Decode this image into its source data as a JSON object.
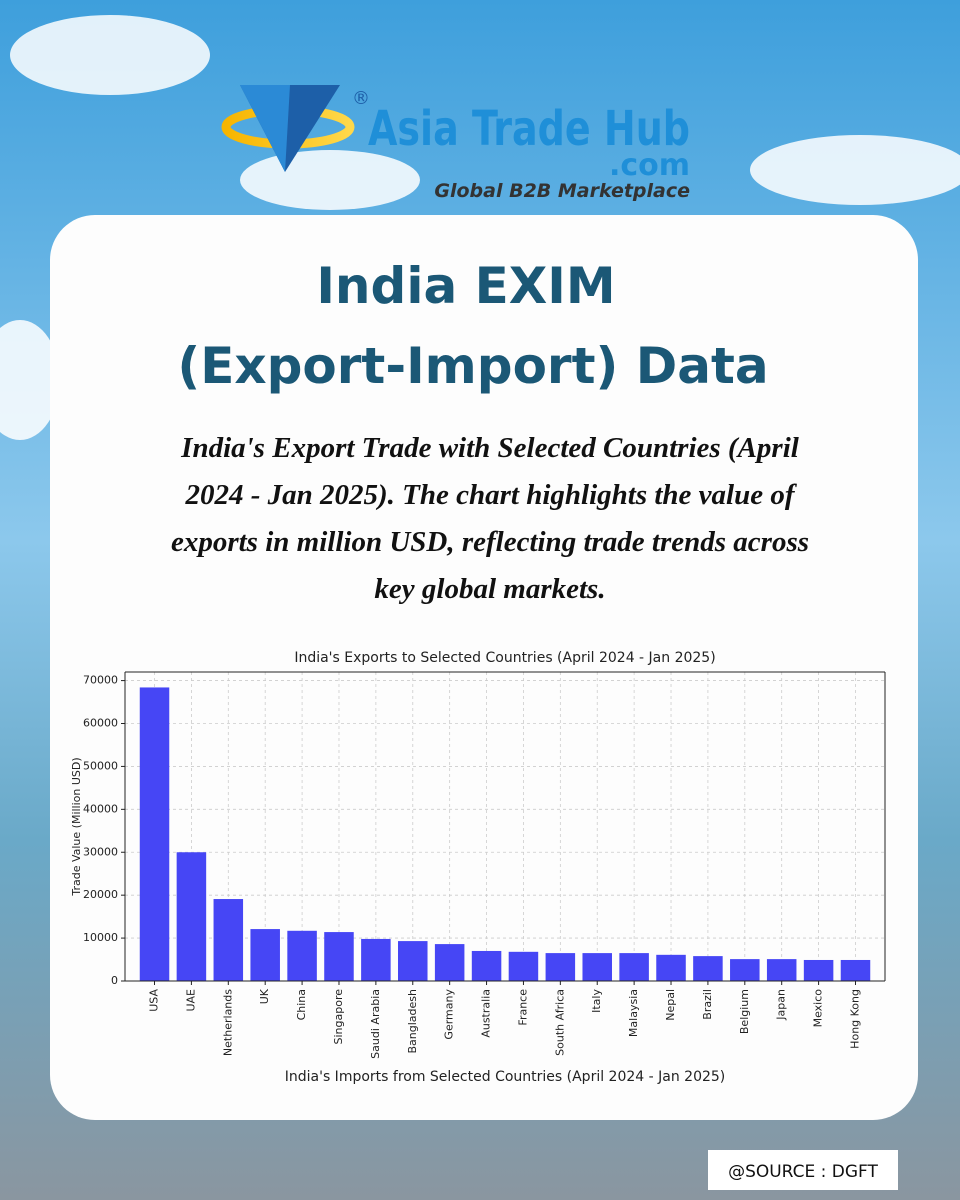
{
  "logo": {
    "name": "Asia Trade Hub",
    "registered": "®",
    "domain": ".com",
    "tagline": "Global B2B Marketplace"
  },
  "heading": [
    "India EXIM",
    "(Export-Import) Data"
  ],
  "description": [
    "India's Export Trade with Selected Countries (April",
    "2024 - Jan 2025). The chart highlights the value of",
    "exports in million USD, reflecting trade trends across",
    "key global markets."
  ],
  "chart_data": {
    "type": "bar",
    "title": "India's Exports to Selected Countries (April 2024 - Jan 2025)",
    "x_label": "India's Imports from Selected Countries (April 2024 - Jan 2025)",
    "y_label": "Trade Value (Million USD)",
    "categories": [
      "USA",
      "UAE",
      "Netherlands",
      "UK",
      "China",
      "Singapore",
      "Saudi Arabia",
      "Bangladesh",
      "Germany",
      "Australia",
      "France",
      "South Africa",
      "Italy",
      "Malaysia",
      "Nepal",
      "Brazil",
      "Belgium",
      "Japan",
      "Mexico",
      "Hong Kong"
    ],
    "values": [
      68400,
      30000,
      19100,
      12100,
      11700,
      11400,
      9800,
      9300,
      8600,
      7000,
      6800,
      6500,
      6500,
      6500,
      6100,
      5800,
      5100,
      5100,
      4900,
      4900
    ],
    "color": "#4646f5",
    "ylim": [
      0,
      72000
    ],
    "yticks": [
      0,
      10000,
      20000,
      30000,
      40000,
      50000,
      60000,
      70000
    ],
    "grid": true
  },
  "source": "@SOURCE : DGFT"
}
